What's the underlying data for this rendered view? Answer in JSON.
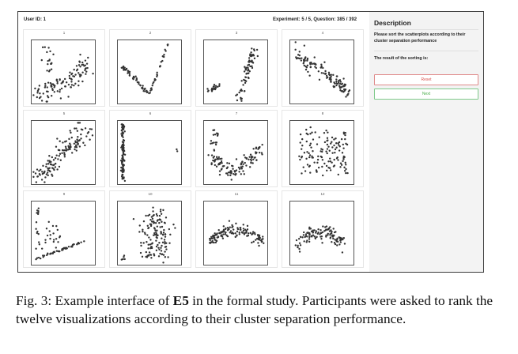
{
  "header": {
    "user_id": "User ID: 1",
    "progress": "Experiment: 5 / 5, Question: 385 / 392"
  },
  "plots": [
    {
      "label": "1"
    },
    {
      "label": "2"
    },
    {
      "label": "3"
    },
    {
      "label": "4"
    },
    {
      "label": "5"
    },
    {
      "label": "6"
    },
    {
      "label": "7"
    },
    {
      "label": "8"
    },
    {
      "label": "9"
    },
    {
      "label": "10"
    },
    {
      "label": "11"
    },
    {
      "label": "12"
    }
  ],
  "panel": {
    "title": "Description",
    "instruction": "Please sort the scatterplots according to their cluster separation performance",
    "result_label": "The result of the sorting is:",
    "reset_label": "Reset",
    "next_label": "Next",
    "reset_color": "#d9534f",
    "next_color": "#4cae4c"
  },
  "caption": {
    "prefix": "Fig. 3: Example interface of ",
    "bold": "E5",
    "suffix": " in the formal study. Participants were asked to rank the twelve visualizations according to their cluster separation performance."
  }
}
